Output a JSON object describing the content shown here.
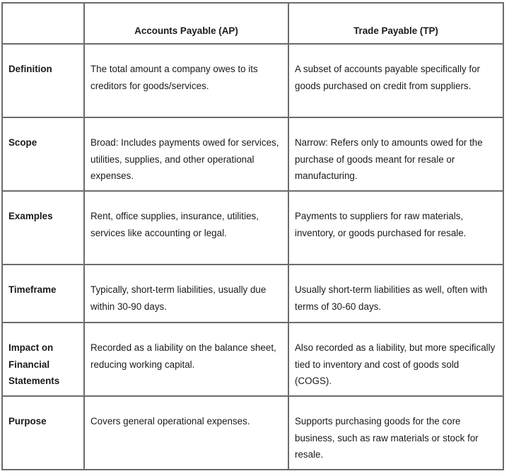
{
  "header": {
    "col1": "",
    "col2": "Accounts Payable (AP)",
    "col3": "Trade Payable (TP)"
  },
  "rows": [
    {
      "label": "Definition",
      "ap": "The total amount a company owes to its creditors for goods/services.",
      "tp": "A subset of accounts payable specifically for goods purchased on credit from suppliers."
    },
    {
      "label": "Scope",
      "ap": "Broad: Includes payments owed for services, utilities, supplies, and other operational expenses.",
      "tp": "Narrow: Refers only to amounts owed for the purchase of goods meant for resale or manufacturing."
    },
    {
      "label": "Examples",
      "ap": "Rent, office supplies, insurance, utilities, services like accounting or legal.",
      "tp": "Payments to suppliers for raw materials, inventory, or goods purchased for resale."
    },
    {
      "label": "Timeframe",
      "ap": "Typically, short-term liabilities, usually due within 30-90 days.",
      "tp": "Usually short-term liabilities as well, often with terms of 30-60 days."
    },
    {
      "label": "Impact on Financial Statements",
      "ap": "Recorded as a liability on the balance sheet, reducing working capital.",
      "tp": "Also recorded as a liability, but more specifically tied to inventory and cost of goods sold (COGS)."
    },
    {
      "label": "Purpose",
      "ap": "Covers general operational expenses.",
      "tp": "Supports purchasing goods for the core business, such as raw materials or stock for resale."
    }
  ]
}
